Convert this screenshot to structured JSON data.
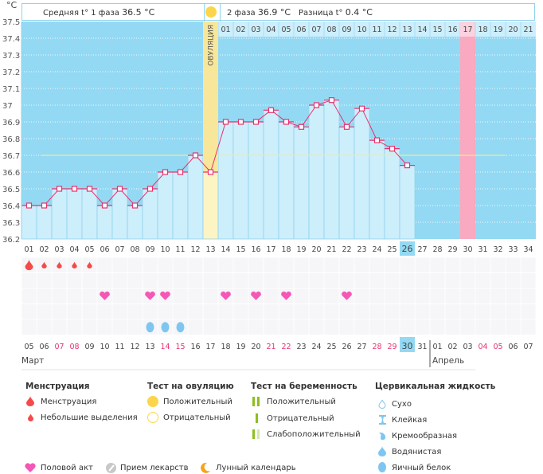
{
  "header": {
    "unit": "°C",
    "phase1_label": "Средняя t° 1 фаза",
    "phase1_value": "36.5 °C",
    "phase2_label": "2 фаза",
    "phase2_value": "36.9 °C",
    "diff_label": "Разница t°",
    "diff_value": "0.4 °C",
    "ovulation_label": "ОВУЛЯЦИЯ"
  },
  "chart_data": {
    "type": "line",
    "title": "",
    "ylabel": "°C",
    "ylim": [
      36.2,
      37.5
    ],
    "yticks": [
      "37.5",
      "37.4",
      "37.3",
      "37.2",
      "37.1",
      "37",
      "36.9",
      "36.8",
      "36.7",
      "36.6",
      "36.5",
      "36.4",
      "36.3",
      "36.2"
    ],
    "cycle_days": [
      "01",
      "02",
      "03",
      "04",
      "05",
      "06",
      "07",
      "08",
      "09",
      "10",
      "11",
      "12",
      "13",
      "14",
      "15",
      "16",
      "17",
      "18",
      "19",
      "20",
      "21",
      "22",
      "23",
      "24",
      "25",
      "26",
      "27",
      "28",
      "29",
      "30",
      "31",
      "32",
      "33",
      "34"
    ],
    "phase2_days": [
      "01",
      "02",
      "03",
      "04",
      "05",
      "06",
      "07",
      "08",
      "09",
      "10",
      "11",
      "12",
      "13",
      "14",
      "15",
      "16",
      "17",
      "18",
      "19",
      "20",
      "21"
    ],
    "temperatures": [
      36.4,
      36.4,
      36.5,
      36.5,
      36.5,
      36.4,
      36.5,
      36.4,
      36.5,
      36.6,
      36.6,
      36.7,
      36.6,
      36.9,
      36.9,
      36.9,
      36.97,
      36.9,
      36.87,
      37.0,
      37.03,
      36.87,
      36.98,
      36.79,
      36.74,
      36.64
    ],
    "coverline": 36.7,
    "ovulation_day": 13,
    "today_day": 26,
    "expected_period_day": 30,
    "calendar_dates": [
      "05",
      "06",
      "07",
      "08",
      "09",
      "10",
      "11",
      "12",
      "13",
      "14",
      "15",
      "16",
      "17",
      "18",
      "19",
      "20",
      "21",
      "22",
      "23",
      "24",
      "25",
      "26",
      "27",
      "28",
      "29",
      "30",
      "31",
      "01",
      "02",
      "03",
      "04",
      "05",
      "06",
      "07"
    ],
    "weekend_dates_index": [
      2,
      3,
      9,
      10,
      16,
      17,
      23,
      24,
      30,
      31
    ],
    "today_date_index": 25,
    "month_labels": [
      {
        "label": "Март",
        "start_index": 0
      },
      {
        "label": "Апрель",
        "start_index": 27
      }
    ],
    "menstruation_days": [
      {
        "day": 1,
        "type": "heavy"
      },
      {
        "day": 2,
        "type": "light"
      },
      {
        "day": 3,
        "type": "light"
      },
      {
        "day": 4,
        "type": "light"
      },
      {
        "day": 5,
        "type": "light"
      }
    ],
    "intercourse_days": [
      6,
      9,
      10,
      14,
      16,
      18,
      22
    ],
    "egg_white_days": [
      9,
      10,
      11
    ]
  },
  "colors": {
    "plot_bg": "#93d9f3",
    "bar_fill": "#cdeefb",
    "line": "#e8326e",
    "ovulation": "#f8e79a",
    "expected_period": "#f9a9c0",
    "coverline": "#f5eb94",
    "weekend": "#e8326e",
    "today": "#93d9f3"
  },
  "legend": {
    "menstruation": {
      "title": "Менструация",
      "items": [
        "Менструация",
        "Небольшие выделения"
      ]
    },
    "ovulation_test": {
      "title": "Тест на овуляцию",
      "items": [
        "Положительный",
        "Отрицательный"
      ]
    },
    "pregnancy_test": {
      "title": "Тест на беременность",
      "items": [
        "Положительный",
        "Отрицательный",
        "Слабоположительный"
      ]
    },
    "cervical_fluid": {
      "title": "Цервикальная жидкость",
      "items": [
        "Сухо",
        "Клейкая",
        "Кремообразная",
        "Водянистая",
        "Яичный белок"
      ]
    },
    "other": [
      "Половой акт",
      "Прием лекарств",
      "Лунный календарь"
    ]
  }
}
